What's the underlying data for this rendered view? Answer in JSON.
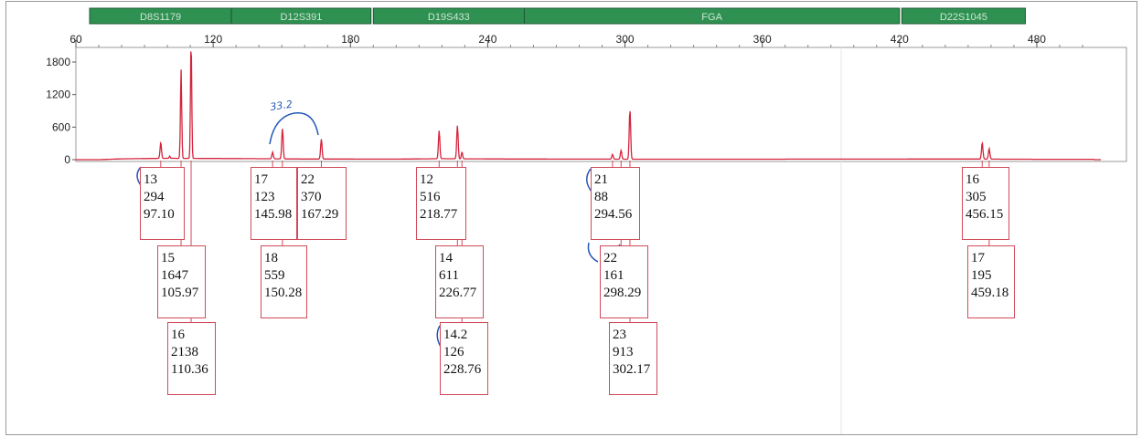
{
  "chart_data": {
    "type": "line",
    "x_ticks": [
      60,
      120,
      180,
      240,
      300,
      360,
      420,
      480
    ],
    "y_ticks": [
      0,
      600,
      1200,
      1800
    ],
    "xlim": [
      60,
      510
    ],
    "ylim": [
      0,
      2100
    ],
    "grid": false,
    "loci": [
      {
        "name": "D8S1179",
        "start": 66,
        "end": 128
      },
      {
        "name": "D12S391",
        "start": 128,
        "end": 189
      },
      {
        "name": "D19S433",
        "start": 190,
        "end": 256
      },
      {
        "name": "FGA",
        "start": 256,
        "end": 420
      },
      {
        "name": "D22S1045",
        "start": 421,
        "end": 475
      }
    ],
    "peaks": [
      {
        "allele": "13",
        "height": 294,
        "size": "97.10"
      },
      {
        "allele": "15",
        "height": 1647,
        "size": "105.97"
      },
      {
        "allele": "16",
        "height": 2138,
        "size": "110.36"
      },
      {
        "allele": "17",
        "height": 123,
        "size": "145.98"
      },
      {
        "allele": "18",
        "height": 559,
        "size": "150.28"
      },
      {
        "allele": "22",
        "height": 370,
        "size": "167.29"
      },
      {
        "allele": "12",
        "height": 516,
        "size": "218.77"
      },
      {
        "allele": "14",
        "height": 611,
        "size": "226.77"
      },
      {
        "allele": "14.2",
        "height": 126,
        "size": "228.76"
      },
      {
        "allele": "21",
        "height": 88,
        "size": "294.56"
      },
      {
        "allele": "22",
        "height": 161,
        "size": "298.29"
      },
      {
        "allele": "23",
        "height": 913,
        "size": "302.17"
      },
      {
        "allele": "16",
        "height": 305,
        "size": "456.15"
      },
      {
        "allele": "17",
        "height": 195,
        "size": "459.18"
      }
    ],
    "trace_color": "#d4243c",
    "locus_bar_color": "#2e9151",
    "annotation_color": "#2458b8"
  },
  "handwritten_note": "33.2"
}
